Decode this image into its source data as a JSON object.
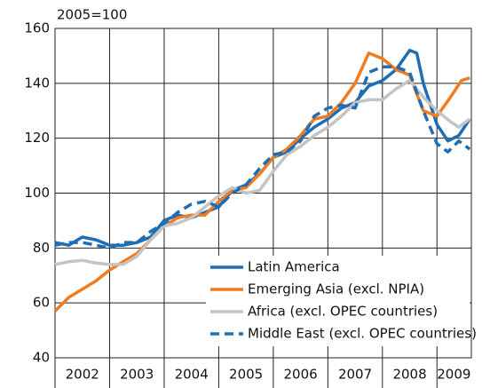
{
  "chart_data": {
    "type": "line",
    "y_label": "2005=100",
    "xlim": [
      2002,
      2009.63
    ],
    "xgrid": [
      2003,
      2004,
      2005,
      2006,
      2007,
      2008,
      2009
    ],
    "xticks": [
      {
        "value": 2002.5,
        "label": "2002"
      },
      {
        "value": 2003.5,
        "label": "2003"
      },
      {
        "value": 2004.5,
        "label": "2004"
      },
      {
        "value": 2005.5,
        "label": "2005"
      },
      {
        "value": 2006.5,
        "label": "2006"
      },
      {
        "value": 2007.5,
        "label": "2007"
      },
      {
        "value": 2008.5,
        "label": "2008"
      },
      {
        "value": 2009.31,
        "label": "2009"
      }
    ],
    "ylim": [
      40,
      160
    ],
    "yticks": [
      40,
      60,
      80,
      100,
      120,
      140,
      160
    ],
    "grid": true,
    "legend": "lower right",
    "series": [
      {
        "name": "Latin America",
        "color": "#1f6db5",
        "dash": false,
        "x": [
          2002,
          2002.25,
          2002.5,
          2002.75,
          2003,
          2003.25,
          2003.5,
          2003.75,
          2004,
          2004.25,
          2004.5,
          2004.75,
          2005,
          2005.25,
          2005.5,
          2005.75,
          2006,
          2006.25,
          2006.5,
          2006.75,
          2007,
          2007.25,
          2007.5,
          2007.75,
          2008,
          2008.25,
          2008.5,
          2008.63,
          2008.75,
          2009,
          2009.2,
          2009.4,
          2009.6
        ],
        "values": [
          82,
          81,
          84,
          83,
          81,
          81,
          82,
          84,
          90,
          92,
          91,
          93,
          95,
          101,
          103,
          107,
          113,
          115,
          120,
          124,
          127,
          131,
          133,
          139,
          141,
          145,
          152,
          151,
          140,
          125,
          119,
          121,
          127
        ]
      },
      {
        "name": "Emerging Asia (excl. NPIA)",
        "color": "#f07c22",
        "dash": false,
        "x": [
          2002,
          2002.25,
          2002.5,
          2002.75,
          2003,
          2003.25,
          2003.5,
          2003.75,
          2004,
          2004.25,
          2004.5,
          2004.75,
          2005,
          2005.25,
          2005.5,
          2005.75,
          2006,
          2006.25,
          2006.5,
          2006.75,
          2007,
          2007.25,
          2007.5,
          2007.75,
          2008,
          2008.25,
          2008.5,
          2008.75,
          2009,
          2009.25,
          2009.45,
          2009.6
        ],
        "values": [
          57,
          62,
          65,
          68,
          72,
          75,
          78,
          83,
          88,
          91,
          92,
          92,
          97,
          101,
          102,
          107,
          113,
          116,
          121,
          127,
          128,
          133,
          140,
          151,
          149,
          145,
          143,
          130,
          128,
          135,
          141,
          142
        ]
      },
      {
        "name": "Africa (excl. OPEC countries)",
        "color": "#c4c4c4",
        "dash": false,
        "x": [
          2002,
          2002.25,
          2002.5,
          2002.75,
          2003,
          2003.25,
          2003.5,
          2003.75,
          2004,
          2004.25,
          2004.5,
          2004.75,
          2005,
          2005.25,
          2005.5,
          2005.75,
          2006,
          2006.25,
          2006.5,
          2006.75,
          2007,
          2007.25,
          2007.5,
          2007.75,
          2008,
          2008.25,
          2008.5,
          2008.75,
          2009,
          2009.25,
          2009.4,
          2009.6
        ],
        "values": [
          74,
          75,
          75.5,
          74.5,
          74,
          74,
          77,
          83,
          88,
          89,
          91,
          95,
          99,
          102,
          100,
          101,
          108,
          114,
          117,
          121,
          124,
          128,
          133,
          134,
          134,
          138,
          141,
          135,
          130,
          126,
          124,
          127
        ]
      },
      {
        "name": "Middle East (excl. OPEC countries)",
        "color": "#1f6db5",
        "dash": true,
        "x": [
          2002,
          2002.25,
          2002.5,
          2002.75,
          2003,
          2003.25,
          2003.5,
          2003.75,
          2004,
          2004.25,
          2004.5,
          2004.75,
          2005,
          2005.25,
          2005.5,
          2005.75,
          2006,
          2006.25,
          2006.5,
          2006.75,
          2007,
          2007.25,
          2007.5,
          2007.75,
          2008,
          2008.25,
          2008.5,
          2008.75,
          2009,
          2009.2,
          2009.4,
          2009.6
        ],
        "values": [
          81,
          82,
          82,
          81,
          80,
          82,
          82,
          86,
          89,
          93,
          96,
          97,
          95,
          100,
          103,
          109,
          114,
          115,
          119,
          128,
          131,
          132,
          131,
          144,
          146,
          146,
          144,
          130,
          118,
          115,
          119,
          116
        ]
      }
    ]
  }
}
